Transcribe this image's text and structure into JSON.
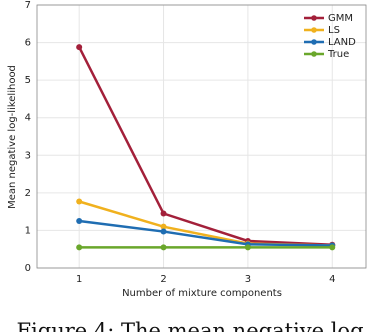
{
  "chart_data": {
    "type": "line",
    "x": [
      1,
      2,
      3,
      4
    ],
    "xlabel": "Number of mixture components",
    "ylabel": "Mean negative log-likelihood",
    "xlim": [
      0.5,
      4.4
    ],
    "ylim": [
      0,
      7
    ],
    "xticks": [
      1,
      2,
      3,
      4
    ],
    "yticks": [
      0,
      1,
      2,
      3,
      4,
      5,
      6,
      7
    ],
    "grid": true,
    "legend": "upper right",
    "series": [
      {
        "name": "GMM",
        "color": "#a3203a",
        "values": [
          5.88,
          1.45,
          0.72,
          0.62
        ]
      },
      {
        "name": "LS",
        "color": "#f0b11e",
        "values": [
          1.77,
          1.1,
          0.65,
          0.6
        ]
      },
      {
        "name": "LAND",
        "color": "#1f6db2",
        "values": [
          1.25,
          0.97,
          0.63,
          0.6
        ]
      },
      {
        "name": "True",
        "color": "#6aa72b",
        "values": [
          0.55,
          0.55,
          0.55,
          0.55
        ]
      }
    ],
    "caption": "Figure 4: The mean negative log"
  }
}
